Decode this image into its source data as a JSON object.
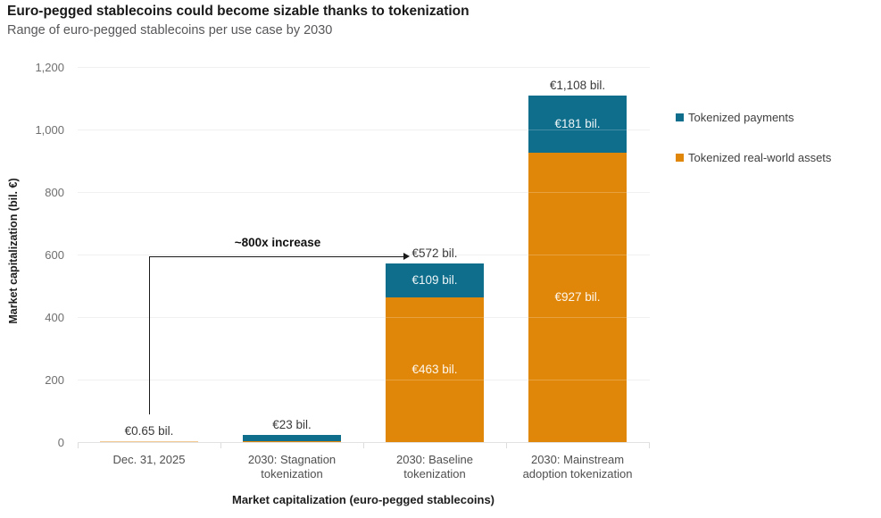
{
  "header": {
    "title": "Euro-pegged stablecoins could become sizable thanks to tokenization",
    "subtitle": "Range of euro-pegged stablecoins per use case by 2030"
  },
  "axes": {
    "y_title": "Market capitalization (bil. €)",
    "x_title": "Market capitalization (euro-pegged stablecoins)",
    "y_ticks": [
      {
        "value": 0,
        "label": "0"
      },
      {
        "value": 200,
        "label": "200"
      },
      {
        "value": 400,
        "label": "400"
      },
      {
        "value": 600,
        "label": "600"
      },
      {
        "value": 800,
        "label": "800"
      },
      {
        "value": 1000,
        "label": "1,000"
      },
      {
        "value": 1200,
        "label": "1,200"
      }
    ]
  },
  "legend": {
    "position": "right",
    "items": [
      {
        "label": "Tokenized payments",
        "color": "#0E6E8C"
      },
      {
        "label": "Tokenized real-world assets",
        "color": "#E0870A"
      }
    ]
  },
  "annotation": {
    "label": "~800x increase",
    "from_category": "Dec. 31, 2025",
    "to_label": "€572 bil."
  },
  "chart_data": {
    "type": "bar",
    "stacked": true,
    "title": "Range of euro-pegged stablecoins per use case by 2030",
    "xlabel": "Market capitalization (euro-pegged stablecoins)",
    "ylabel": "Market capitalization (bil. €)",
    "ylim": [
      0,
      1200
    ],
    "grid": true,
    "legend_position": "right",
    "categories": [
      {
        "lines": [
          "Dec. 31, 2025"
        ]
      },
      {
        "lines": [
          "2030: Stagnation",
          "tokenization"
        ]
      },
      {
        "lines": [
          "2030: Baseline",
          "tokenization"
        ]
      },
      {
        "lines": [
          "2030: Mainstream",
          "adoption tokenization"
        ]
      }
    ],
    "series": [
      {
        "name": "Tokenized real-world assets",
        "color": "#E0870A",
        "values": [
          0.65,
          4,
          463,
          927
        ],
        "value_labels": [
          "",
          "",
          "€463 bil.",
          "€927 bil."
        ]
      },
      {
        "name": "Tokenized payments",
        "color": "#0E6E8C",
        "values": [
          0,
          19,
          109,
          181
        ],
        "value_labels": [
          "",
          "",
          "€109 bil.",
          "€181 bil."
        ]
      }
    ],
    "totals": [
      0.65,
      23,
      572,
      1108
    ],
    "total_labels": [
      "€0.65 bil.",
      "€23 bil.",
      "€572 bil.",
      "€1,108 bil."
    ],
    "unlabeled_segment_splits_estimated": true
  }
}
